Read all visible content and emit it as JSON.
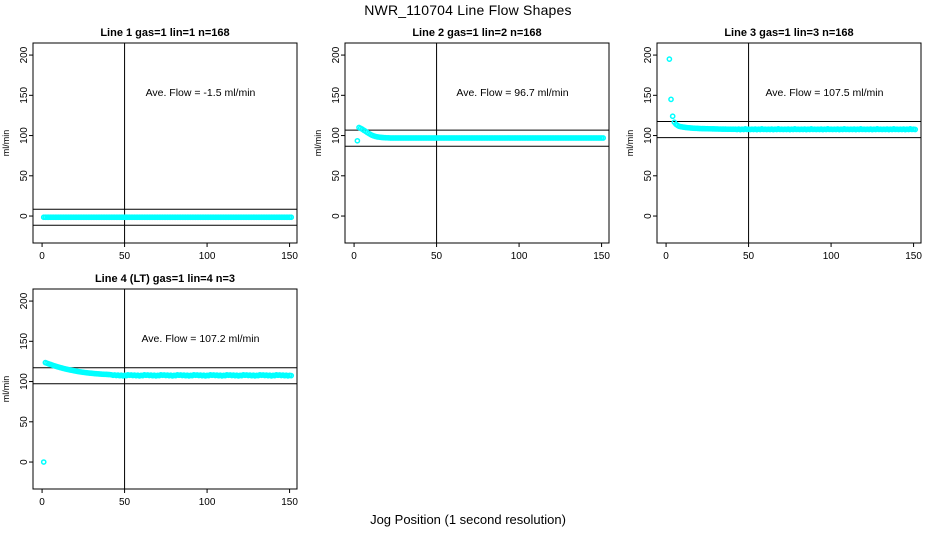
{
  "title": "NWR_110704  Line Flow Shapes",
  "xlabel": "Jog Position (1 second resolution)",
  "point_color": "#00ffff",
  "axis_color": "#000000",
  "chart_data": [
    {
      "type": "scatter",
      "title": "Line 1 gas=1 lin=1 n=168",
      "ylabel": "ml/min",
      "annotation": "Ave. Flow =  -1.5  ml/min",
      "annotation_xy": [
        96,
        149
      ],
      "ave_flow_ml_min": -1.5,
      "xlim": [
        -5.5,
        154.5
      ],
      "ylim": [
        -33.5,
        215
      ],
      "xticks": [
        0,
        50,
        100,
        150
      ],
      "yticks": [
        0,
        50,
        100,
        150,
        200
      ],
      "vline_x": 50,
      "hlines": [
        8.5,
        -11.5
      ],
      "x_start": 1,
      "y": [
        -1.5,
        -1.5,
        -1.5,
        -1.5,
        -1.5,
        -1.5,
        -1.5,
        -1.5,
        -1.5,
        -1.5,
        -1.5,
        -1.5,
        -1.5,
        -1.5,
        -1.5,
        -1.5,
        -1.5,
        -1.5,
        -1.5,
        -1.5,
        -1.5,
        -1.5,
        -1.5,
        -1.5,
        -1.5,
        -1.5,
        -1.5,
        -1.5,
        -1.5,
        -1.5,
        -1.5,
        -1.5,
        -1.5,
        -1.5,
        -1.5,
        -1.5,
        -1.5,
        -1.5,
        -1.5,
        -1.5,
        -1.5,
        -1.5,
        -1.5,
        -1.5,
        -1.5,
        -1.5,
        -1.5,
        -1.5,
        -1.5,
        -1.5,
        -1.5,
        -1.5,
        -1.5,
        -1.5,
        -1.5,
        -1.5,
        -1.5,
        -1.5,
        -1.5,
        -1.5,
        -1.5,
        -1.5,
        -1.5,
        -1.5,
        -1.5,
        -1.5,
        -1.5,
        -1.5,
        -1.5,
        -1.5,
        -1.5,
        -1.5,
        -1.5,
        -1.5,
        -1.5,
        -1.5,
        -1.5,
        -1.5,
        -1.5,
        -1.5,
        -1.5,
        -1.5,
        -1.5,
        -1.5,
        -1.5,
        -1.5,
        -1.5,
        -1.5,
        -1.5,
        -1.5,
        -1.5,
        -1.5,
        -1.5,
        -1.5,
        -1.5,
        -1.5,
        -1.5,
        -1.5,
        -1.5,
        -1.5,
        -1.5,
        -1.5,
        -1.5,
        -1.5,
        -1.5,
        -1.5,
        -1.5,
        -1.5,
        -1.5,
        -1.5,
        -1.5,
        -1.5,
        -1.5,
        -1.5,
        -1.5,
        -1.5,
        -1.5,
        -1.5,
        -1.5,
        -1.5,
        -1.5,
        -1.5,
        -1.5,
        -1.5,
        -1.5,
        -1.5,
        -1.5,
        -1.5,
        -1.5,
        -1.5,
        -1.5,
        -1.5,
        -1.5,
        -1.5,
        -1.5,
        -1.5,
        -1.5,
        -1.5,
        -1.5,
        -1.5,
        -1.5,
        -1.5,
        -1.5,
        -1.5,
        -1.5,
        -1.5,
        -1.5,
        -1.5,
        -1.5,
        -1.5,
        -1.5
      ]
    },
    {
      "type": "scatter",
      "title": "Line 2 gas=1 lin=2 n=168",
      "ylabel": "ml/min",
      "annotation": "Ave. Flow =  96.7  ml/min",
      "annotation_xy": [
        96,
        149
      ],
      "ave_flow_ml_min": 96.7,
      "xlim": [
        -5.5,
        154.5
      ],
      "ylim": [
        -33.5,
        215
      ],
      "xticks": [
        0,
        50,
        100,
        150
      ],
      "yticks": [
        0,
        50,
        100,
        150,
        200
      ],
      "vline_x": 50,
      "hlines": [
        106.7,
        86.7
      ],
      "x_start": 2,
      "y": [
        93.5,
        110,
        109,
        107.8,
        106.5,
        105.2,
        103.8,
        102.5,
        101.3,
        100.3,
        99.5,
        98.9,
        98.4,
        98.1,
        97.8,
        97.6,
        97.4,
        97.3,
        97.2,
        97.1,
        97,
        97,
        97,
        97,
        97,
        97,
        97,
        97,
        97,
        97,
        97,
        97,
        97,
        97,
        97,
        97,
        97,
        97,
        97,
        97,
        97,
        97,
        97,
        97,
        97,
        97,
        97,
        97,
        97,
        97,
        97,
        97,
        97,
        97,
        97,
        97,
        97,
        97,
        97,
        97,
        97,
        97,
        97,
        97,
        97,
        97,
        97,
        97,
        97,
        97,
        97,
        97,
        97,
        97,
        97,
        97,
        97,
        97,
        97,
        97,
        97,
        97,
        97,
        97,
        97,
        97,
        97,
        97,
        97,
        97,
        97,
        97,
        97,
        97,
        97,
        97,
        97,
        97,
        97,
        97,
        97,
        97,
        97,
        97,
        97,
        97,
        97,
        97,
        97,
        97,
        97,
        97,
        97,
        97,
        97,
        97,
        97,
        97,
        97,
        97,
        97,
        97,
        97,
        97,
        97,
        97,
        97,
        97,
        97,
        97,
        97,
        97,
        97,
        97,
        97,
        97,
        97,
        97,
        97,
        97,
        97,
        97,
        97,
        97,
        97,
        97,
        97,
        97,
        97,
        97
      ]
    },
    {
      "type": "scatter",
      "title": "Line 3 gas=1 lin=3 n=168",
      "ylabel": "ml/min",
      "annotation": "Ave. Flow =  107.5  ml/min",
      "annotation_xy": [
        96,
        149
      ],
      "ave_flow_ml_min": 107.5,
      "xlim": [
        -5.5,
        154.5
      ],
      "ylim": [
        -33.5,
        215
      ],
      "xticks": [
        0,
        50,
        100,
        150
      ],
      "yticks": [
        0,
        50,
        100,
        150,
        200
      ],
      "vline_x": 50,
      "hlines": [
        117.5,
        97.5
      ],
      "x_start": 2,
      "y": [
        195,
        145,
        124,
        116.5,
        114,
        112.5,
        111.5,
        111,
        110.6,
        110.3,
        110,
        109.8,
        109.6,
        109.4,
        109.2,
        109.1,
        109,
        108.9,
        108.8,
        108.7,
        108.6,
        108.6,
        108.5,
        108.5,
        108.4,
        108.4,
        108.3,
        108.3,
        108.2,
        108.2,
        108.1,
        108.1,
        108,
        108,
        108,
        107.9,
        107.9,
        107.9,
        107.8,
        107.8,
        107.8,
        107.5,
        108.1,
        107.4,
        107.9,
        107.5,
        108.3,
        107.6,
        107.8,
        107.5,
        107.8,
        107.5,
        108.1,
        107.4,
        107.9,
        107.5,
        108.3,
        107.6,
        107.8,
        107.5,
        107.8,
        107.5,
        108.1,
        107.4,
        107.9,
        107.5,
        108.3,
        107.6,
        107.8,
        107.5,
        107.8,
        107.5,
        108.1,
        107.4,
        107.9,
        107.5,
        108.3,
        107.6,
        107.8,
        107.5,
        107.8,
        107.5,
        108.1,
        107.4,
        107.9,
        107.5,
        108.3,
        107.6,
        107.8,
        107.5,
        107.8,
        107.5,
        108.1,
        107.4,
        107.9,
        107.5,
        108.3,
        107.6,
        107.8,
        107.5,
        107.8,
        107.5,
        108.1,
        107.4,
        107.9,
        107.5,
        108.3,
        107.6,
        107.8,
        107.5,
        107.8,
        107.5,
        108.1,
        107.4,
        107.9,
        107.5,
        108.3,
        107.6,
        107.8,
        107.5,
        107.8,
        107.5,
        108.1,
        107.4,
        107.9,
        107.5,
        108.3,
        107.6,
        107.8,
        107.5,
        107.8,
        107.5,
        108.1,
        107.4,
        107.9,
        107.5,
        108.3,
        107.6,
        107.8,
        107.5,
        107.8,
        107.5,
        108.1,
        107.4,
        107.9,
        107.5,
        108.3,
        107.6,
        107.8,
        107.5
      ]
    },
    {
      "type": "scatter",
      "title": "Line 4 (LT) gas=1 lin=4 n=3",
      "ylabel": "ml/min",
      "annotation": "Ave. Flow =  107.2  ml/min",
      "annotation_xy": [
        96,
        149
      ],
      "ave_flow_ml_min": 107.2,
      "xlim": [
        -5.5,
        154.5
      ],
      "ylim": [
        -33.5,
        215
      ],
      "xticks": [
        0,
        50,
        100,
        150
      ],
      "yticks": [
        0,
        50,
        100,
        150,
        200
      ],
      "vline_x": 50,
      "hlines": [
        117.2,
        97.2
      ],
      "x_start": 1,
      "y": [
        0,
        123.5,
        122.8,
        122,
        121.3,
        120.6,
        119.9,
        119.2,
        118.6,
        118,
        117.4,
        116.8,
        116.3,
        115.8,
        115.3,
        114.8,
        114.4,
        114,
        113.6,
        113.2,
        112.8,
        112.4,
        112.1,
        111.8,
        111.5,
        111.2,
        110.9,
        110.7,
        110.5,
        110.3,
        110.1,
        109.9,
        109.7,
        109.5,
        109.4,
        109.2,
        109.1,
        109,
        108.9,
        108.8,
        108.7,
        108.4,
        107.8,
        108.2,
        107.5,
        108,
        107.3,
        107.9,
        107.1,
        107.7,
        107.4,
        108.4,
        107.8,
        108.2,
        107.5,
        108,
        107.3,
        107.9,
        107.1,
        107.7,
        107.4,
        108.4,
        107.8,
        108.2,
        107.5,
        108,
        107.3,
        107.9,
        107.1,
        107.7,
        107.4,
        108.4,
        107.8,
        108.2,
        107.5,
        108,
        107.3,
        107.9,
        107.1,
        107.7,
        107.4,
        108.4,
        107.8,
        108.2,
        107.5,
        108,
        107.3,
        107.9,
        107.1,
        107.7,
        107.4,
        108.4,
        107.8,
        108.2,
        107.5,
        108,
        107.3,
        107.9,
        107.1,
        107.7,
        107.4,
        108.4,
        107.8,
        108.2,
        107.5,
        108,
        107.3,
        107.9,
        107.1,
        107.7,
        107.4,
        108.4,
        107.8,
        108.2,
        107.5,
        108,
        107.3,
        107.9,
        107.1,
        107.7,
        107.4,
        108.4,
        107.8,
        108.2,
        107.5,
        108,
        107.3,
        107.9,
        107.1,
        107.7,
        107.4,
        108.4,
        107.8,
        108.2,
        107.5,
        108,
        107.3,
        107.9,
        107.1,
        107.7,
        107.4,
        108.4,
        107.8,
        108.2,
        107.5,
        108,
        107.3,
        107.9,
        107.1,
        107.7,
        107.4
      ]
    }
  ]
}
